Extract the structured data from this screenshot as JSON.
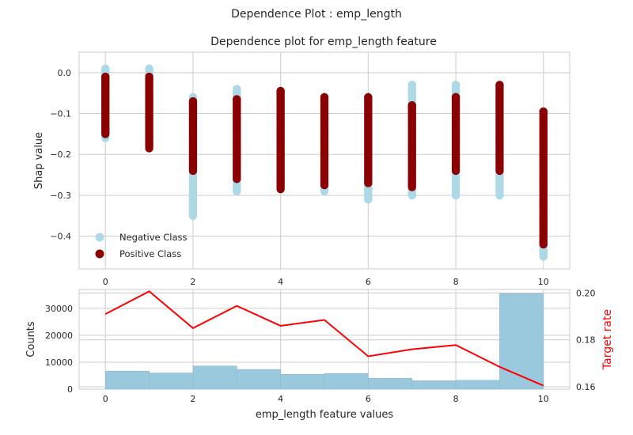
{
  "figure": {
    "suptitle": "Dependence Plot : emp_length"
  },
  "chart_data": [
    {
      "type": "scatter",
      "title": "Dependence plot for emp_length feature",
      "xlabel": "",
      "ylabel": "Shap value",
      "xlim": [
        -0.6,
        10.6
      ],
      "ylim": [
        -0.48,
        0.05
      ],
      "x_ticks": [
        "0",
        "2",
        "4",
        "6",
        "8",
        "10"
      ],
      "y_ticks": [
        "0.0",
        "−0.1",
        "−0.2",
        "−0.3",
        "−0.4"
      ],
      "legend_position": "lower-left",
      "grid": true,
      "series": [
        {
          "name": "Negative Class",
          "color": "#add8e6",
          "points": [
            {
              "x": 0,
              "ymin": -0.16,
              "ymax": 0.01
            },
            {
              "x": 1,
              "ymin": -0.18,
              "ymax": 0.01
            },
            {
              "x": 2,
              "ymin": -0.35,
              "ymax": -0.06,
              "outliers": [
                -0.27,
                -0.35
              ]
            },
            {
              "x": 3,
              "ymin": -0.29,
              "ymax": -0.04,
              "outliers": [
                -0.04,
                -0.29
              ]
            },
            {
              "x": 4,
              "ymin": -0.28,
              "ymax": -0.06,
              "outliers": [
                -0.26,
                -0.27
              ]
            },
            {
              "x": 5,
              "ymin": -0.29,
              "ymax": -0.06
            },
            {
              "x": 6,
              "ymin": -0.31,
              "ymax": -0.06,
              "outliers": [
                -0.28,
                -0.31
              ]
            },
            {
              "x": 7,
              "ymin": -0.3,
              "ymax": -0.03,
              "outliers": [
                -0.03,
                -0.06,
                -0.3
              ]
            },
            {
              "x": 8,
              "ymin": -0.3,
              "ymax": -0.03,
              "outliers": [
                -0.03,
                -0.05,
                -0.26,
                -0.3
              ]
            },
            {
              "x": 9,
              "ymin": -0.3,
              "ymax": -0.05,
              "outliers": [
                -0.05,
                -0.06,
                -0.26,
                -0.28,
                -0.3
              ]
            },
            {
              "x": 10,
              "ymin": -0.45,
              "ymax": -0.13
            }
          ]
        },
        {
          "name": "Positive Class",
          "color": "#8b0000",
          "points": [
            {
              "x": 0,
              "ymin": -0.15,
              "ymax": -0.01
            },
            {
              "x": 1,
              "ymin": -0.185,
              "ymax": -0.01
            },
            {
              "x": 2,
              "ymin": -0.24,
              "ymax": -0.07
            },
            {
              "x": 3,
              "ymin": -0.26,
              "ymax": -0.065
            },
            {
              "x": 4,
              "ymin": -0.285,
              "ymax": -0.045
            },
            {
              "x": 5,
              "ymin": -0.275,
              "ymax": -0.06
            },
            {
              "x": 6,
              "ymin": -0.27,
              "ymax": -0.06
            },
            {
              "x": 7,
              "ymin": -0.28,
              "ymax": -0.08
            },
            {
              "x": 8,
              "ymin": -0.24,
              "ymax": -0.06
            },
            {
              "x": 9,
              "ymin": -0.24,
              "ymax": -0.03
            },
            {
              "x": 10,
              "ymin": -0.42,
              "ymax": -0.095
            }
          ]
        }
      ]
    },
    {
      "type": "bar",
      "title": "",
      "xlabel": "emp_length feature values",
      "ylabel": "Counts",
      "y2label": "Target rate",
      "xlim": [
        -0.6,
        10.6
      ],
      "ylim": [
        0,
        37000
      ],
      "y2lim": [
        0.159,
        0.2015
      ],
      "x_ticks": [
        "0",
        "2",
        "4",
        "6",
        "8",
        "10"
      ],
      "y_ticks": [
        "0",
        "10000",
        "20000",
        "30000"
      ],
      "y2_ticks": [
        "0.16",
        "0.18",
        "0.20"
      ],
      "bar_color": "#9ac8dc",
      "line_color": "#ff0000",
      "bins": [
        {
          "start": 0,
          "end": 1,
          "count": 6700
        },
        {
          "start": 1,
          "end": 2,
          "count": 6000
        },
        {
          "start": 2,
          "end": 3,
          "count": 8600
        },
        {
          "start": 3,
          "end": 4,
          "count": 7300
        },
        {
          "start": 4,
          "end": 5,
          "count": 5500
        },
        {
          "start": 5,
          "end": 6,
          "count": 5800
        },
        {
          "start": 6,
          "end": 7,
          "count": 4000
        },
        {
          "start": 7,
          "end": 8,
          "count": 3100
        },
        {
          "start": 8,
          "end": 9,
          "count": 3300
        },
        {
          "start": 9,
          "end": 10,
          "count": 35500
        }
      ],
      "target_rate": {
        "x": [
          0,
          1,
          2,
          3,
          4,
          5,
          6,
          7,
          8,
          9,
          10
        ],
        "values": [
          0.191,
          0.2007,
          0.185,
          0.1945,
          0.186,
          0.1885,
          0.173,
          0.176,
          0.1778,
          0.1685,
          0.1605
        ]
      }
    }
  ]
}
